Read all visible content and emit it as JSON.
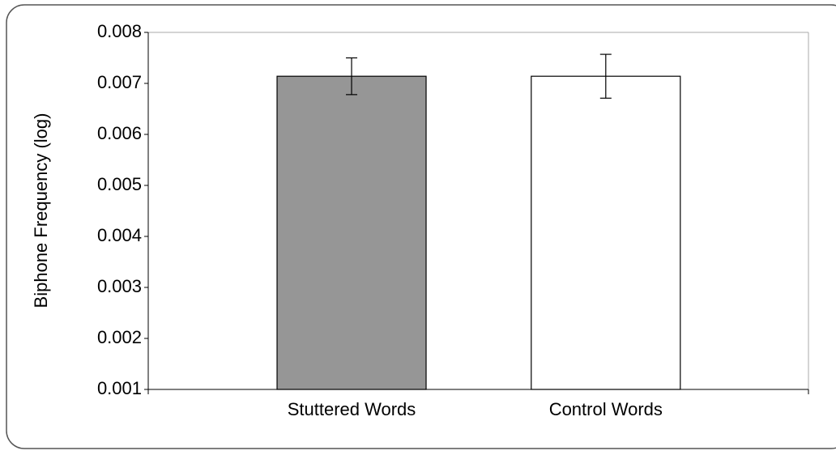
{
  "chart_data": {
    "type": "bar",
    "y_label": "Biphone Frequency (log)",
    "categories": [
      "Stuttered Words",
      "Control Words"
    ],
    "values": [
      0.00714,
      0.00714
    ],
    "errors": [
      0.00036,
      0.00043
    ],
    "colors": [
      "#969696",
      "#ffffff"
    ],
    "ylim": [
      0.001,
      0.008
    ],
    "yticks": [
      0.001,
      0.002,
      0.003,
      0.004,
      0.005,
      0.006,
      0.007,
      0.008
    ],
    "grid": false
  }
}
